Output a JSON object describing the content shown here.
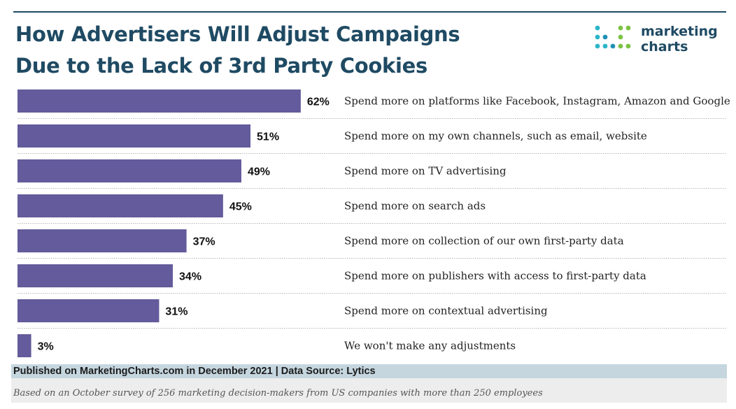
{
  "title_lines": [
    "How Advertisers Will Adjust Campaigns",
    "Due to the Lack of 3rd Party Cookies"
  ],
  "logo": {
    "line1": "marketing",
    "line2": "charts",
    "dot_colors": [
      "#2bb5c9",
      "#7cc243",
      "#1f8fb5"
    ]
  },
  "chart_data": {
    "type": "bar",
    "orientation": "horizontal",
    "title": "How Advertisers Will Adjust Campaigns Due to the Lack of 3rd Party Cookies",
    "categories": [
      "Spend more on platforms like Facebook, Instagram, Amazon and Google",
      "Spend more on my own channels, such as email, website",
      "Spend more on TV advertising",
      "Spend more on search ads",
      "Spend more on collection of our own first-party data",
      "Spend more on publishers with access to first-party data",
      "Spend more on contextual advertising",
      "We won't make any adjustments"
    ],
    "values": [
      62,
      51,
      49,
      45,
      37,
      34,
      31,
      3
    ],
    "data_labels": [
      "62%",
      "51%",
      "49%",
      "45%",
      "37%",
      "34%",
      "31%",
      "3%"
    ],
    "unit": "%",
    "xlim": [
      0,
      100
    ],
    "bar_color": "#635b9b",
    "grid": "dotted row separators"
  },
  "footer": {
    "published": "Published on MarketingCharts.com in December 2021 | Data Source: Lytics",
    "note": "Based on an October survey of 256 marketing decision-makers from US companies with more than 250 employees"
  }
}
